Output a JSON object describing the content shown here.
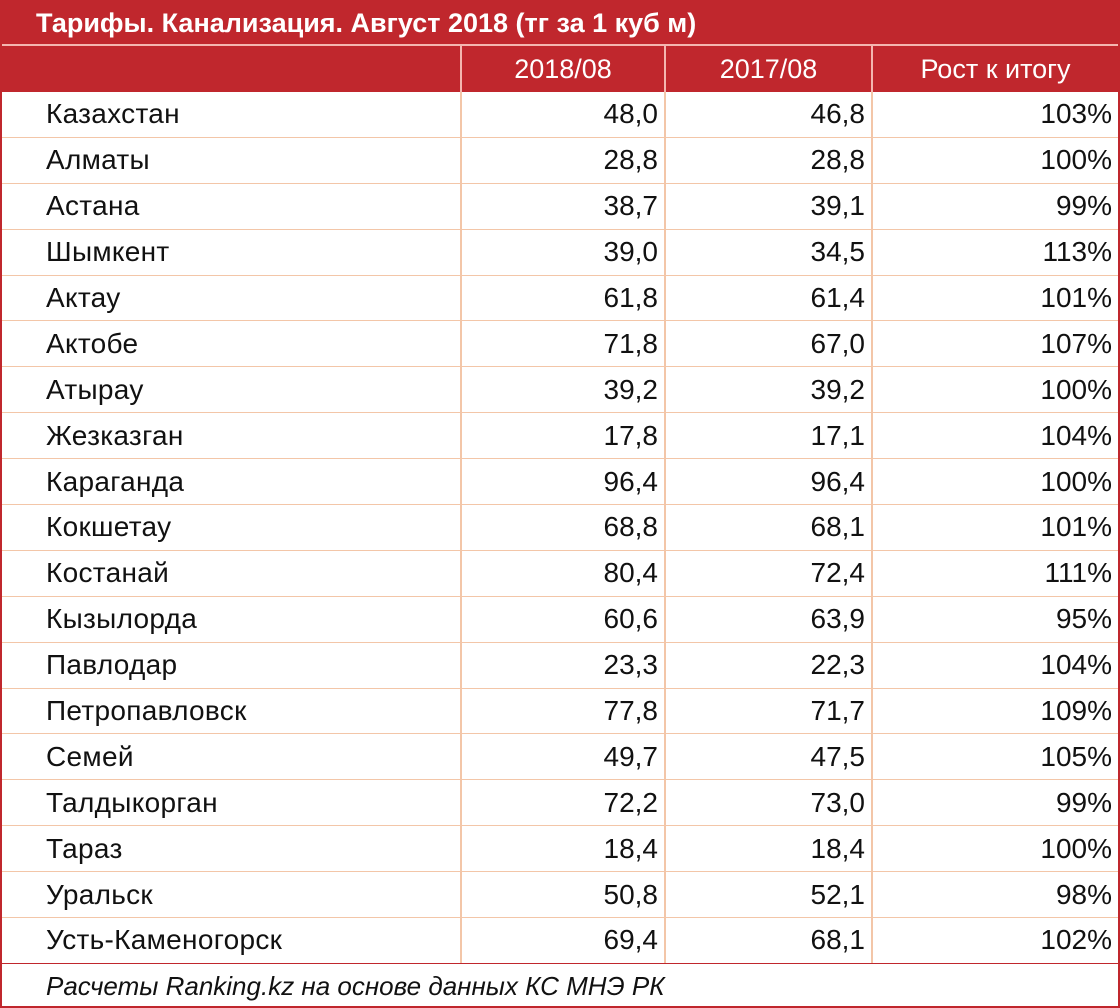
{
  "title": "Тарифы. Канализация. Август 2018 (тг за 1 куб м)",
  "colors": {
    "accent": "#c0272d",
    "grid": "#f3c6a8"
  },
  "chart_data": {
    "type": "table",
    "title": "Тарифы. Канализация. Август 2018 (тг за 1 куб м)",
    "columns": [
      "",
      "2018/08",
      "2017/08",
      "Рост к итогу"
    ],
    "rows": [
      {
        "name": "Казахстан",
        "v2018": "48,0",
        "v2017": "46,8",
        "growth": "103%"
      },
      {
        "name": "Алматы",
        "v2018": "28,8",
        "v2017": "28,8",
        "growth": "100%"
      },
      {
        "name": "Астана",
        "v2018": "38,7",
        "v2017": "39,1",
        "growth": "99%"
      },
      {
        "name": "Шымкент",
        "v2018": "39,0",
        "v2017": "34,5",
        "growth": "113%"
      },
      {
        "name": "Актау",
        "v2018": "61,8",
        "v2017": "61,4",
        "growth": "101%"
      },
      {
        "name": "Актобе",
        "v2018": "71,8",
        "v2017": "67,0",
        "growth": "107%"
      },
      {
        "name": "Атырау",
        "v2018": "39,2",
        "v2017": "39,2",
        "growth": "100%"
      },
      {
        "name": "Жезказган",
        "v2018": "17,8",
        "v2017": "17,1",
        "growth": "104%"
      },
      {
        "name": "Караганда",
        "v2018": "96,4",
        "v2017": "96,4",
        "growth": "100%"
      },
      {
        "name": "Кокшетау",
        "v2018": "68,8",
        "v2017": "68,1",
        "growth": "101%"
      },
      {
        "name": "Костанай",
        "v2018": "80,4",
        "v2017": "72,4",
        "growth": "111%"
      },
      {
        "name": "Кызылорда",
        "v2018": "60,6",
        "v2017": "63,9",
        "growth": "95%"
      },
      {
        "name": "Павлодар",
        "v2018": "23,3",
        "v2017": "22,3",
        "growth": "104%"
      },
      {
        "name": "Петропавловск",
        "v2018": "77,8",
        "v2017": "71,7",
        "growth": "109%"
      },
      {
        "name": "Семей",
        "v2018": "49,7",
        "v2017": "47,5",
        "growth": "105%"
      },
      {
        "name": "Талдыкорган",
        "v2018": "72,2",
        "v2017": "73,0",
        "growth": "99%"
      },
      {
        "name": "Тараз",
        "v2018": "18,4",
        "v2017": "18,4",
        "growth": "100%"
      },
      {
        "name": "Уральск",
        "v2018": "50,8",
        "v2017": "52,1",
        "growth": "98%"
      },
      {
        "name": "Усть-Каменогорск",
        "v2018": "69,4",
        "v2017": "68,1",
        "growth": "102%"
      }
    ]
  },
  "footer": "Расчеты Ranking.kz на основе данных КС МНЭ РК"
}
